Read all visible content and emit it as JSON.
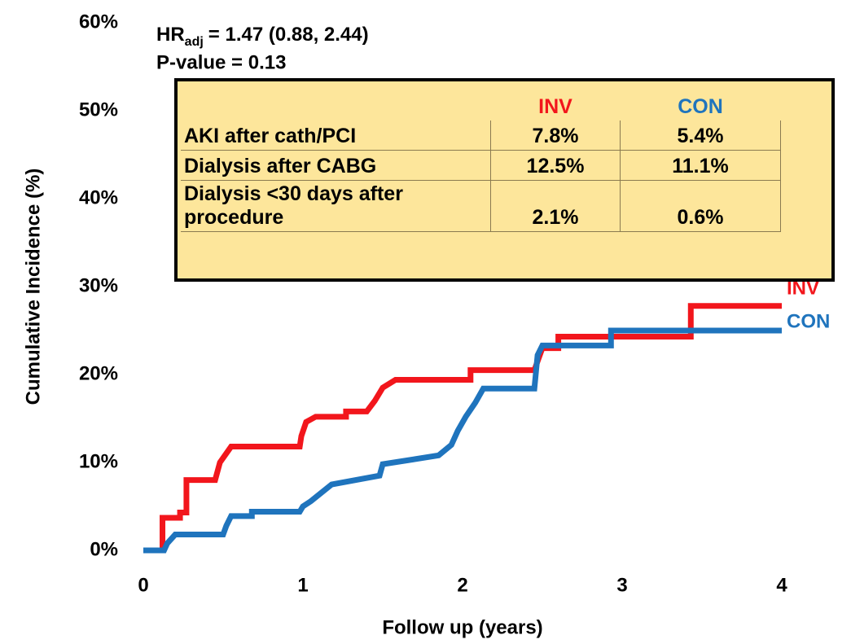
{
  "chart_data": {
    "type": "line",
    "step": true,
    "xlabel": "Follow up (years)",
    "ylabel": "Cumulative Incidence (%)",
    "xlim": [
      0,
      4
    ],
    "xticks": [
      0,
      1,
      2,
      3,
      4
    ],
    "ylim": [
      0,
      60
    ],
    "yticks": [
      {
        "value": 0,
        "label": "0%"
      },
      {
        "value": 10,
        "label": "10%"
      },
      {
        "value": 20,
        "label": "20%"
      },
      {
        "value": 30,
        "label": "30%"
      },
      {
        "value": 40,
        "label": "40%"
      },
      {
        "value": 50,
        "label": "50%"
      },
      {
        "value": 60,
        "label": "60%"
      }
    ],
    "grid": false,
    "legend": "line-end",
    "series": [
      {
        "name": "INV",
        "color": "#f2161c",
        "x": [
          0,
          0.12,
          0.12,
          0.23,
          0.23,
          0.27,
          0.27,
          0.45,
          0.48,
          0.55,
          0.98,
          0.99,
          1.02,
          1.08,
          1.27,
          1.27,
          1.4,
          1.45,
          1.5,
          1.58,
          2.05,
          2.05,
          2.45,
          2.5,
          2.6,
          2.6,
          3.43,
          3.43,
          4
        ],
        "values": [
          0,
          0,
          3.7,
          3.7,
          4.3,
          4.3,
          8,
          8,
          10,
          11.8,
          11.8,
          13,
          14.6,
          15.2,
          15.2,
          15.8,
          15.8,
          17,
          18.5,
          19.4,
          19.4,
          20.5,
          20.5,
          23,
          23,
          24.3,
          24.3,
          27.8,
          27.8
        ]
      },
      {
        "name": "CON",
        "color": "#1f74bd",
        "x": [
          0,
          0.13,
          0.15,
          0.2,
          0.5,
          0.52,
          0.55,
          0.68,
          0.68,
          0.98,
          1.0,
          1.05,
          1.18,
          1.48,
          1.5,
          1.85,
          1.93,
          1.97,
          2.02,
          2.08,
          2.13,
          2.45,
          2.47,
          2.5,
          2.93,
          2.93,
          4
        ],
        "values": [
          0,
          0,
          0.8,
          1.8,
          1.8,
          2.8,
          3.9,
          3.9,
          4.4,
          4.4,
          5,
          5.6,
          7.5,
          8.5,
          9.8,
          10.8,
          12,
          13.6,
          15.2,
          16.8,
          18.4,
          18.4,
          22.2,
          23.3,
          23.3,
          25,
          25
        ]
      }
    ],
    "annotations": {
      "hr_prefix": "HR",
      "hr_sub": "adj",
      "hr_value": "= 1.47 (0.88, 2.44)",
      "p_value": "P-value = 0.13"
    },
    "table": {
      "columns": [
        "INV",
        "CON"
      ],
      "rows": [
        [
          "AKI after cath/PCI",
          "7.8%",
          "5.4%"
        ],
        [
          "Dialysis after CABG",
          "12.5%",
          "11.1%"
        ],
        [
          "Dialysis <30 days after procedure",
          "2.1%",
          "0.6%"
        ]
      ]
    }
  }
}
